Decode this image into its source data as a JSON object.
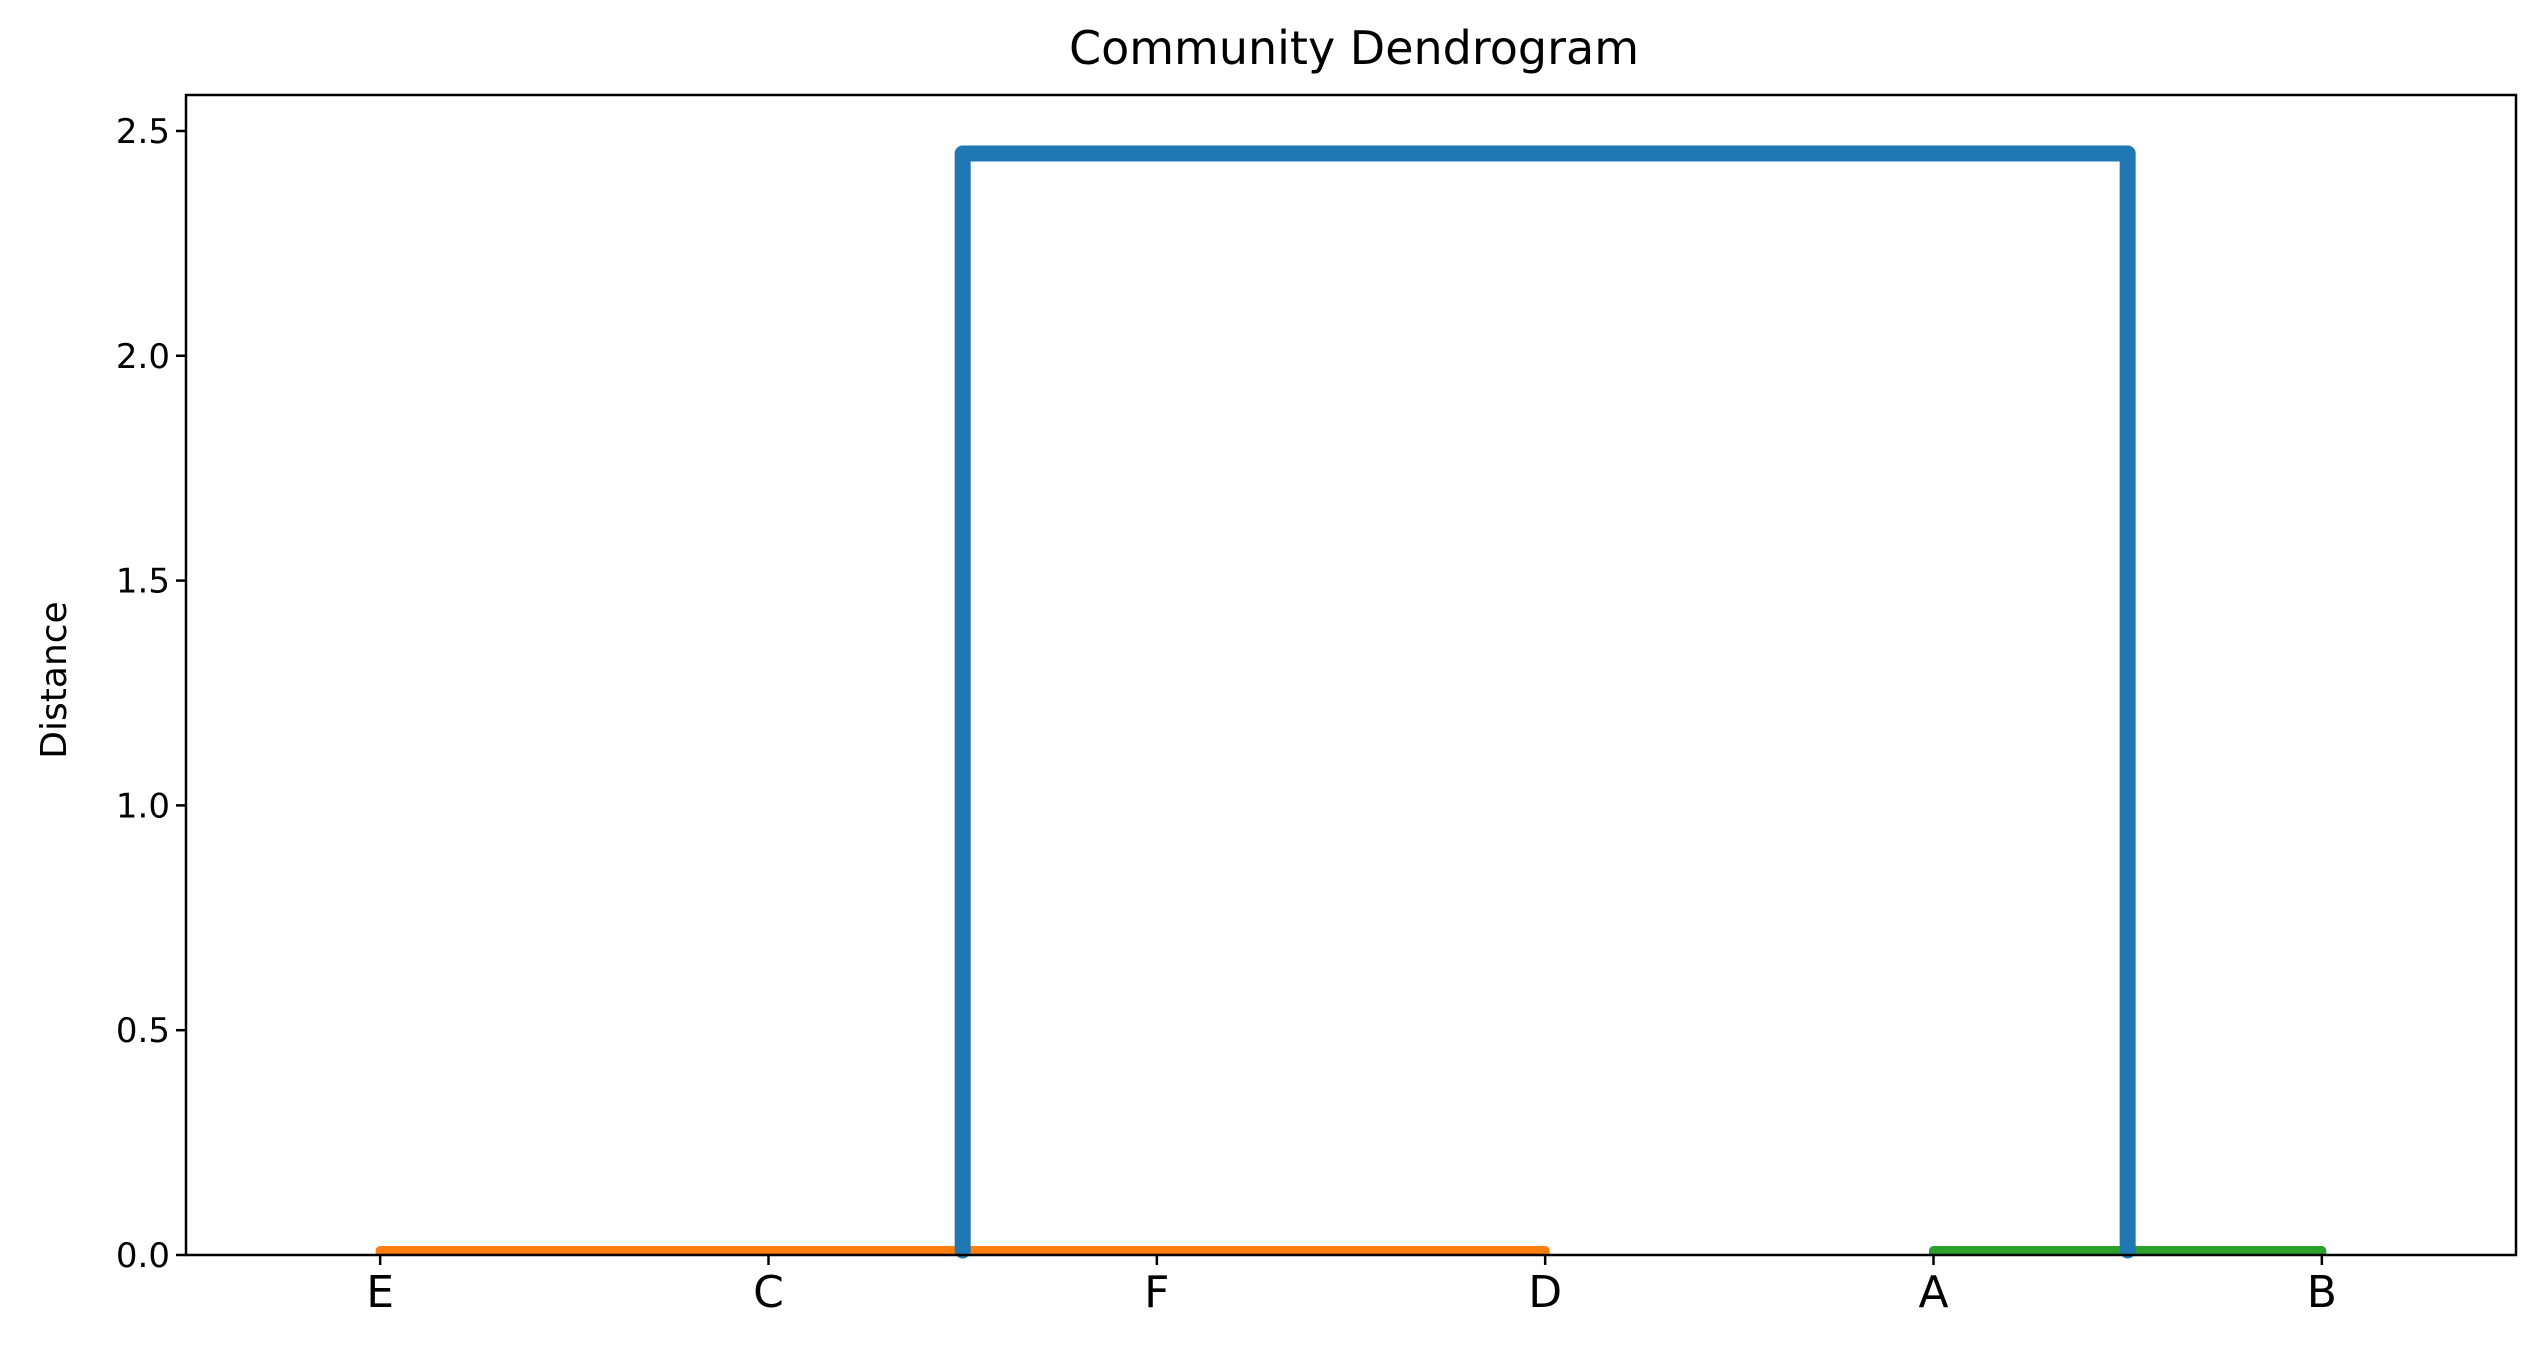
{
  "chart_data": {
    "type": "dendrogram",
    "title": "Community Dendrogram",
    "xlabel": "",
    "ylabel": "Distance",
    "ylim": [
      0,
      2.58
    ],
    "yticks": [
      0.0,
      0.5,
      1.0,
      1.5,
      2.0,
      2.5
    ],
    "ytick_labels": [
      "0.0",
      "0.5",
      "1.0",
      "1.5",
      "2.0",
      "2.5"
    ],
    "leaves": [
      "E",
      "C",
      "F",
      "D",
      "A",
      "B"
    ],
    "links": [
      {
        "left": "E",
        "right": "C",
        "height": 0.01,
        "color": "#ff7f0e"
      },
      {
        "left": "F",
        "right": "D",
        "height": 0.01,
        "color": "#ff7f0e"
      },
      {
        "left": "E+C",
        "right": "F+D",
        "height": 0.01,
        "color": "#ff7f0e"
      },
      {
        "left": "A",
        "right": "B",
        "height": 0.01,
        "color": "#2ca02c"
      },
      {
        "left": "E+C+F+D",
        "right": "A+B",
        "height": 2.45,
        "color": "#1f77b4"
      }
    ],
    "grid": false
  }
}
